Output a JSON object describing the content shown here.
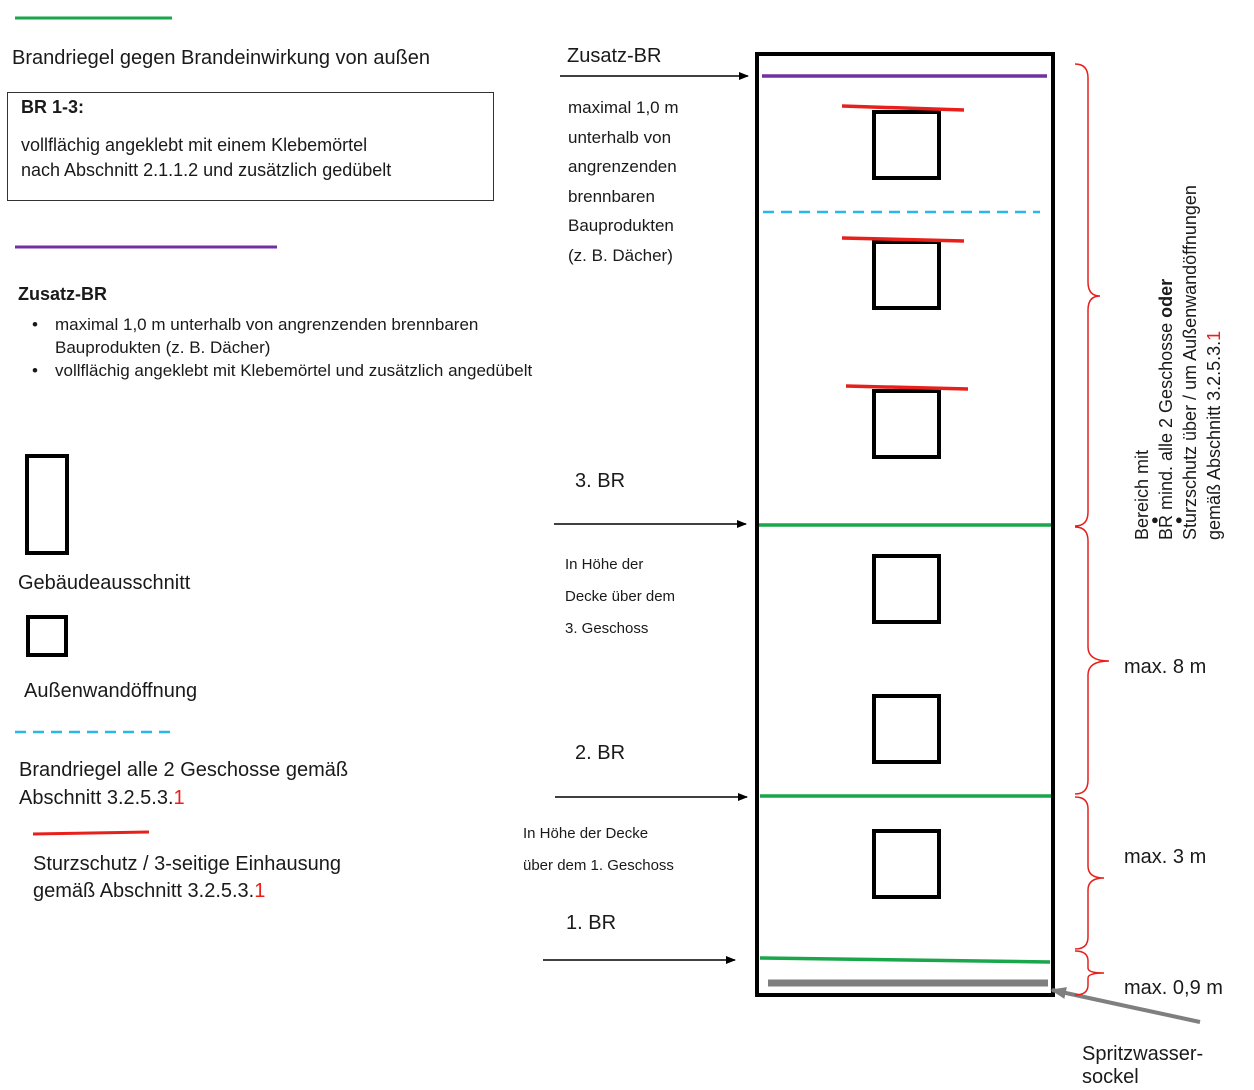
{
  "legend": {
    "br_outside": "Brandriegel gegen Brandeinwirkung von außen",
    "br13_title": "BR 1-3:",
    "br13_line1": "vollflächig angeklebt mit einem Klebemörtel",
    "br13_line2": "nach Abschnitt 2.1.1.2 und zusätzlich gedübelt",
    "zusatz_title": "Zusatz-BR",
    "zusatz_b1_line1": "maximal 1,0 m unterhalb von angrenzenden brennbaren",
    "zusatz_b1_line2": "Bauprodukten (z. B. Dächer)",
    "zusatz_b2": "vollflächig angeklebt mit Klebemörtel und zusätzlich angedübelt",
    "gebaeude": "Gebäudeausschnitt",
    "oeffnung": "Außenwandöffnung",
    "br2g_line1": "Brandriegel alle 2 Geschosse gemäß",
    "br2g_line2_a": "Abschnitt 3.2.5.3.",
    "br2g_line2_b": "1",
    "sturz_line1": "Sturzschutz / 3-seitige Einhausung",
    "sturz_line2_a": "gemäß Abschnitt 3.2.5.3.",
    "sturz_line2_b": "1"
  },
  "annotations": {
    "zusatz_label": "Zusatz-BR",
    "zusatz_note": [
      "maximal 1,0 m",
      "unterhalb von",
      "angrenzenden",
      "brennbaren",
      "Bauprodukten",
      "(z. B. Dächer)"
    ],
    "br3_label": "3. BR",
    "br3_note": [
      "In Höhe der",
      "Decke über dem",
      "3. Geschoss"
    ],
    "br2_label": "2. BR",
    "br2_note": [
      "In Höhe der Decke",
      "über dem 1. Geschoss"
    ],
    "br1_label": "1. BR",
    "max8": "max. 8 m",
    "max3": "max. 3 m",
    "max09": "max. 0,9 m",
    "spritz_line1": "Spritzwasser-",
    "spritz_line2": "sockel"
  },
  "side": {
    "line1": "Bereich mit",
    "line2_a": "BR mind. alle 2 Geschosse ",
    "line2_b": "oder",
    "line3": "Sturzschutz über / um Außenwandöffnungen",
    "line4_a": "gemäß Abschnitt 3.2.5.3.",
    "line4_b": "1",
    "bullet": "●"
  },
  "colors": {
    "green": "#1aa64a",
    "purple": "#7030a0",
    "cyan": "#29b6e8",
    "red": "#e8201c",
    "gray": "#7f7f7f"
  }
}
